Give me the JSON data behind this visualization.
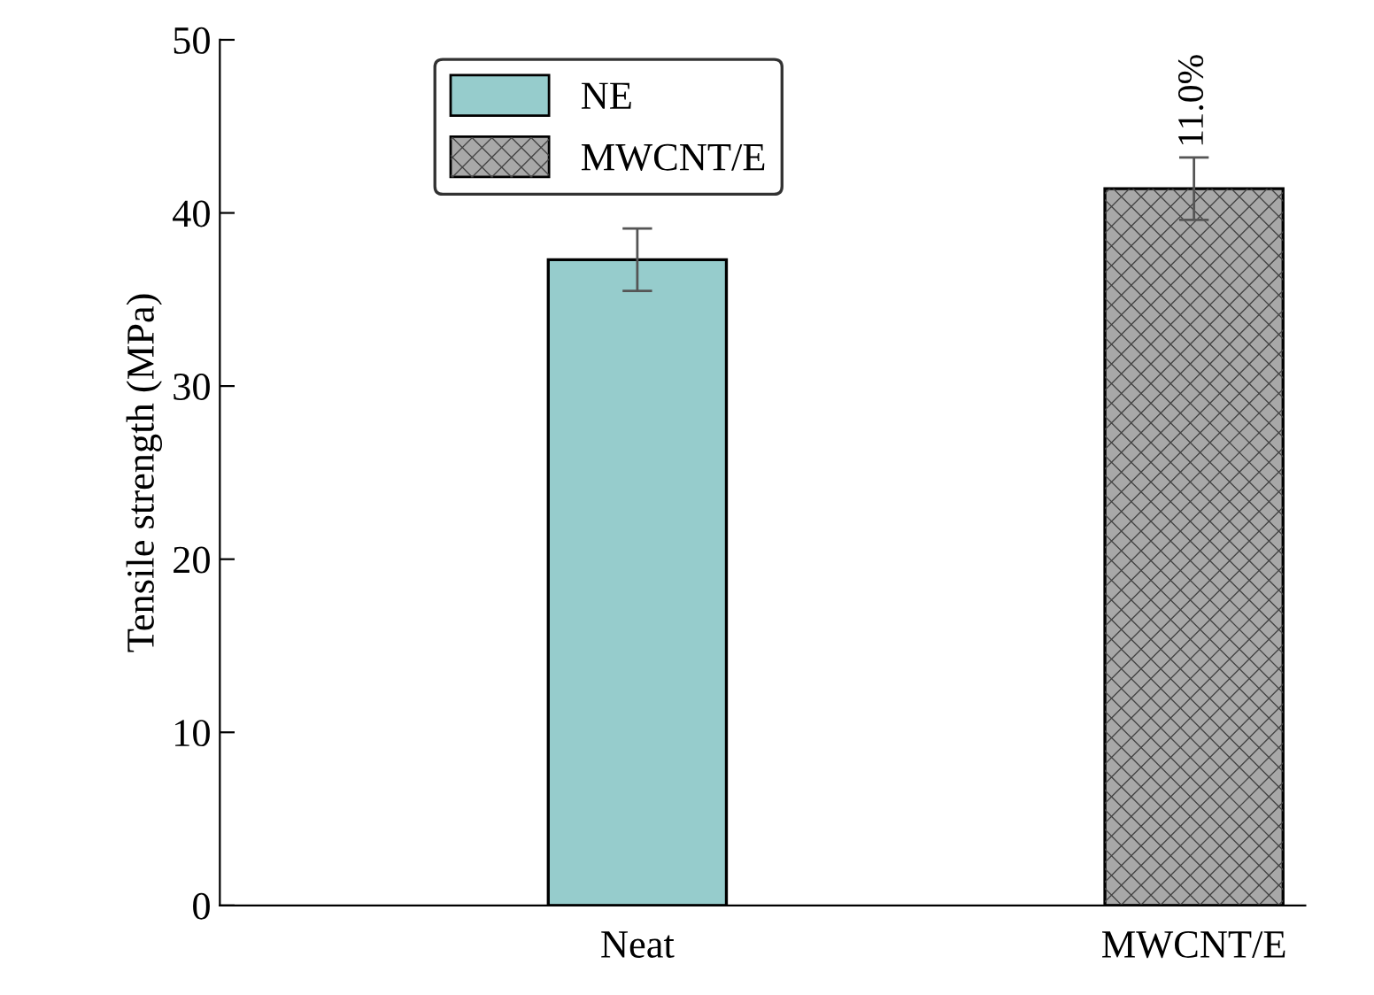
{
  "chart_data": {
    "type": "bar",
    "ylabel": "Tensile strength (MPa)",
    "categories": [
      "Neat",
      "MWCNT/E"
    ],
    "series": [
      {
        "name": "NE",
        "color": "#96cccc",
        "values": [
          37.3,
          null
        ],
        "errors": [
          1.8,
          null
        ]
      },
      {
        "name": "MWCNT/E",
        "color": "#a8a8a8",
        "values": [
          null,
          41.4
        ],
        "errors": [
          null,
          1.8
        ]
      }
    ],
    "ylim": [
      0,
      50
    ],
    "yticks": [
      0,
      10,
      20,
      30,
      40,
      50
    ],
    "legend": "top left",
    "grid": false,
    "annotations": [
      {
        "text": "11.0%",
        "x": "MWCNT/E",
        "y": 43.2
      }
    ]
  }
}
